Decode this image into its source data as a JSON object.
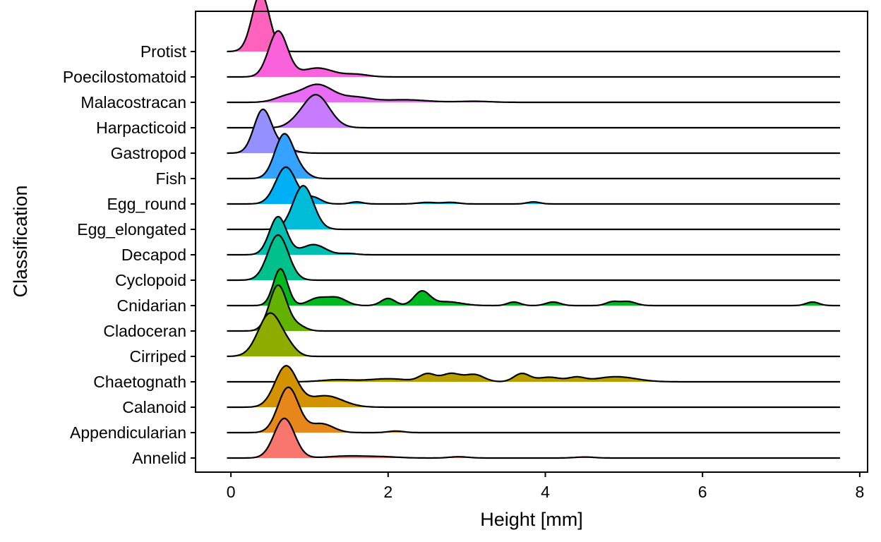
{
  "chart_data": {
    "type": "ridgeline",
    "title": "",
    "xlabel": "Height [mm]",
    "ylabel": "Classification",
    "xlim": [
      -0.45,
      8.1
    ],
    "x_ticks": [
      0,
      2,
      4,
      6,
      8
    ],
    "x_tick_labels": [
      "0",
      "2",
      "4",
      "6",
      "8"
    ],
    "grid": false,
    "legend": "none",
    "x_range": [
      -0.05,
      7.75
    ],
    "categories": [
      "Annelid",
      "Appendicularian",
      "Calanoid",
      "Chaetognath",
      "Cirriped",
      "Cladoceran",
      "Cnidarian",
      "Cyclopoid",
      "Decapod",
      "Egg_elongated",
      "Egg_round",
      "Fish",
      "Gastropod",
      "Harpacticoid",
      "Malacostracan",
      "Poecilostomatoid",
      "Protist"
    ],
    "series": [
      {
        "name": "Annelid",
        "color": "#F8766D",
        "components": [
          [
            0.68,
            0.13,
            1.56
          ],
          [
            1.5,
            0.25,
            0.08
          ],
          [
            1.95,
            0.2,
            0.04
          ],
          [
            2.9,
            0.12,
            0.05
          ],
          [
            4.5,
            0.12,
            0.04
          ]
        ]
      },
      {
        "name": "Appendicularian",
        "color": "#E7861B",
        "components": [
          [
            0.73,
            0.13,
            1.78
          ],
          [
            1.15,
            0.15,
            0.35
          ],
          [
            2.1,
            0.1,
            0.06
          ]
        ]
      },
      {
        "name": "Calanoid",
        "color": "#D39200",
        "components": [
          [
            0.7,
            0.14,
            1.6
          ],
          [
            1.2,
            0.22,
            0.45
          ]
        ]
      },
      {
        "name": "Chaetognath",
        "color": "#B79F00",
        "components": [
          [
            1.35,
            0.2,
            0.08
          ],
          [
            2.0,
            0.25,
            0.12
          ],
          [
            2.5,
            0.1,
            0.3
          ],
          [
            2.8,
            0.12,
            0.32
          ],
          [
            3.1,
            0.12,
            0.28
          ],
          [
            3.7,
            0.1,
            0.32
          ],
          [
            4.05,
            0.15,
            0.18
          ],
          [
            4.4,
            0.1,
            0.16
          ],
          [
            4.9,
            0.25,
            0.2
          ]
        ]
      },
      {
        "name": "Cirriped",
        "color": "#8EAB00",
        "components": [
          [
            0.5,
            0.15,
            1.7
          ],
          [
            0.75,
            0.1,
            0.2
          ]
        ]
      },
      {
        "name": "Cladoceran",
        "color": "#64B200",
        "components": [
          [
            0.6,
            0.11,
            1.8
          ],
          [
            0.85,
            0.1,
            0.2
          ]
        ]
      },
      {
        "name": "Cnidarian",
        "color": "#00B81F",
        "components": [
          [
            0.63,
            0.09,
            1.45
          ],
          [
            1.1,
            0.12,
            0.28
          ],
          [
            1.35,
            0.12,
            0.3
          ],
          [
            2.0,
            0.09,
            0.28
          ],
          [
            2.43,
            0.1,
            0.55
          ],
          [
            2.75,
            0.18,
            0.15
          ],
          [
            3.6,
            0.08,
            0.14
          ],
          [
            4.1,
            0.09,
            0.14
          ],
          [
            4.85,
            0.08,
            0.14
          ],
          [
            5.05,
            0.1,
            0.16
          ],
          [
            7.4,
            0.08,
            0.14
          ]
        ]
      },
      {
        "name": "Cyclopoid",
        "color": "#00C08B",
        "components": [
          [
            0.6,
            0.13,
            1.78
          ]
        ]
      },
      {
        "name": "Decapod",
        "color": "#00BFAF",
        "components": [
          [
            0.6,
            0.11,
            1.5
          ],
          [
            1.05,
            0.15,
            0.4
          ],
          [
            1.5,
            0.1,
            0.05
          ]
        ]
      },
      {
        "name": "Egg_elongated",
        "color": "#00BCD8",
        "components": [
          [
            0.92,
            0.13,
            1.72
          ]
        ]
      },
      {
        "name": "Egg_round",
        "color": "#00B0F6",
        "components": [
          [
            0.7,
            0.13,
            1.45
          ],
          [
            1.05,
            0.1,
            0.25
          ],
          [
            1.6,
            0.08,
            0.08
          ],
          [
            2.5,
            0.12,
            0.06
          ],
          [
            2.8,
            0.1,
            0.06
          ],
          [
            3.85,
            0.08,
            0.08
          ]
        ]
      },
      {
        "name": "Fish",
        "color": "#35A2FF",
        "components": [
          [
            0.68,
            0.12,
            1.75
          ],
          [
            0.9,
            0.1,
            0.2
          ]
        ]
      },
      {
        "name": "Gastropod",
        "color": "#9590FF",
        "components": [
          [
            0.4,
            0.11,
            1.6
          ],
          [
            0.6,
            0.15,
            0.3
          ]
        ]
      },
      {
        "name": "Harpacticoid",
        "color": "#C77CFF",
        "components": [
          [
            1.08,
            0.17,
            1.3
          ],
          [
            0.8,
            0.1,
            0.08
          ]
        ]
      },
      {
        "name": "Malacostracan",
        "color": "#E76BF3",
        "components": [
          [
            0.7,
            0.15,
            0.2
          ],
          [
            1.1,
            0.2,
            0.7
          ],
          [
            1.6,
            0.18,
            0.18
          ],
          [
            2.2,
            0.3,
            0.1
          ],
          [
            3.1,
            0.2,
            0.04
          ]
        ]
      },
      {
        "name": "Poecilostomatoid",
        "color": "#FA62DB",
        "components": [
          [
            0.6,
            0.12,
            1.8
          ],
          [
            1.1,
            0.2,
            0.35
          ],
          [
            1.6,
            0.15,
            0.1
          ]
        ]
      },
      {
        "name": "Protist",
        "color": "#FF62BC",
        "components": [
          [
            0.38,
            0.11,
            2.3
          ]
        ]
      }
    ]
  }
}
